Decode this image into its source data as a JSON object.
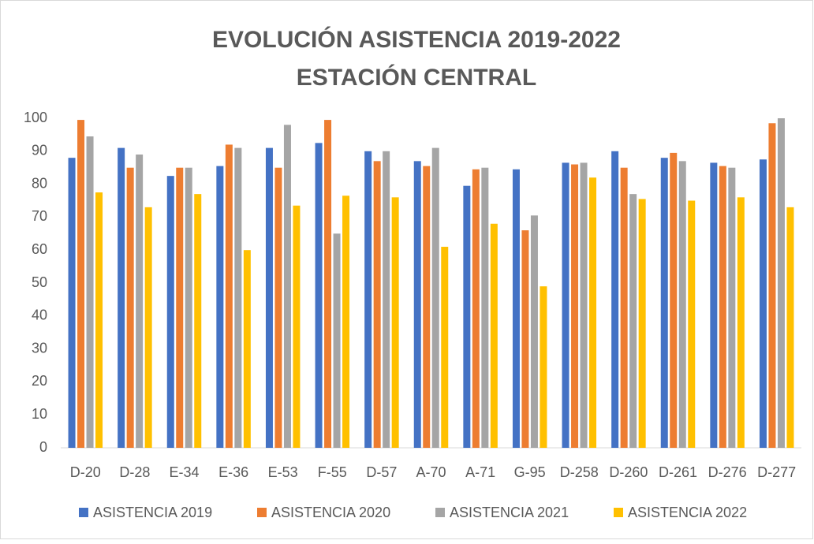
{
  "chart_data": {
    "type": "bar",
    "title": "EVOLUCIÓN ASISTENCIA 2019-2022",
    "subtitle": "ESTACIÓN CENTRAL",
    "categories": [
      "D-20",
      "D-28",
      "E-34",
      "E-36",
      "E-53",
      "F-55",
      "D-57",
      "A-70",
      "A-71",
      "G-95",
      "D-258",
      "D-260",
      "D-261",
      "D-276",
      "D-277"
    ],
    "series": [
      {
        "name": "ASISTENCIA 2019",
        "color": "#4472c4",
        "values": [
          88,
          91,
          82.5,
          85.5,
          91,
          92.5,
          90,
          87,
          79.5,
          84.5,
          86.5,
          90,
          88,
          86.5,
          87.5
        ]
      },
      {
        "name": "ASISTENCIA 2020",
        "color": "#ed7d31",
        "values": [
          99.5,
          85,
          85,
          92,
          85,
          99.5,
          87,
          85.5,
          84.5,
          66,
          86,
          85,
          89.5,
          85.5,
          98.5
        ]
      },
      {
        "name": "ASISTENCIA 2021",
        "color": "#a5a5a5",
        "values": [
          94.5,
          89,
          85,
          91,
          98,
          65,
          90,
          91,
          85,
          70.5,
          86.5,
          77,
          87,
          85,
          100
        ]
      },
      {
        "name": "ASISTENCIA 2022",
        "color": "#ffc000",
        "values": [
          77.5,
          73,
          77,
          60,
          73.5,
          76.5,
          76,
          61,
          68,
          49,
          82,
          75.5,
          75,
          76,
          73
        ]
      }
    ],
    "ylim": [
      0,
      100
    ],
    "yticks": [
      0,
      10,
      20,
      30,
      40,
      50,
      60,
      70,
      80,
      90,
      100
    ],
    "grid": false,
    "legend": "bottom"
  }
}
